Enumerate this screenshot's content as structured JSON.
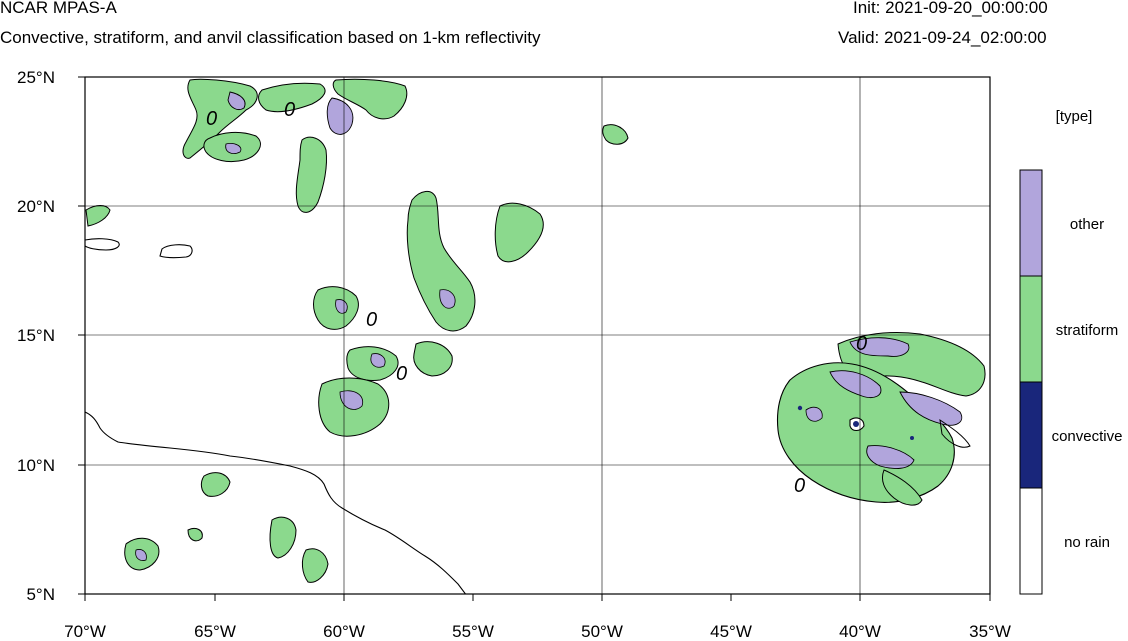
{
  "header": {
    "model": "NCAR MPAS-A",
    "description": "Convective, stratiform, and anvil classification based on 1-km reflectivity",
    "init": "Init: 2021-09-20_00:00:00",
    "valid": "Valid: 2021-09-24_02:00:00"
  },
  "map": {
    "lon_labels": [
      "70°W",
      "65°W",
      "60°W",
      "55°W",
      "50°W",
      "45°W",
      "40°W",
      "35°W"
    ],
    "lat_labels": [
      "25°N",
      "20°N",
      "15°N",
      "10°N",
      "5°N"
    ],
    "lon_range": [
      -70,
      -35
    ],
    "lat_range": [
      5,
      25
    ],
    "grid": true,
    "contour_labels": [
      "0",
      "0",
      "0",
      "0",
      "0",
      "0"
    ]
  },
  "legend": {
    "title": "[type]",
    "items": [
      {
        "label": "other",
        "color": "#b1a5dc"
      },
      {
        "label": "stratiform",
        "color": "#8bd98d"
      },
      {
        "label": "convective",
        "color": "#19267b"
      },
      {
        "label": "no rain",
        "color": "#ffffff"
      }
    ]
  },
  "colors": {
    "other": "#b1a5dc",
    "stratiform": "#8bd98d",
    "convective": "#19267b"
  }
}
